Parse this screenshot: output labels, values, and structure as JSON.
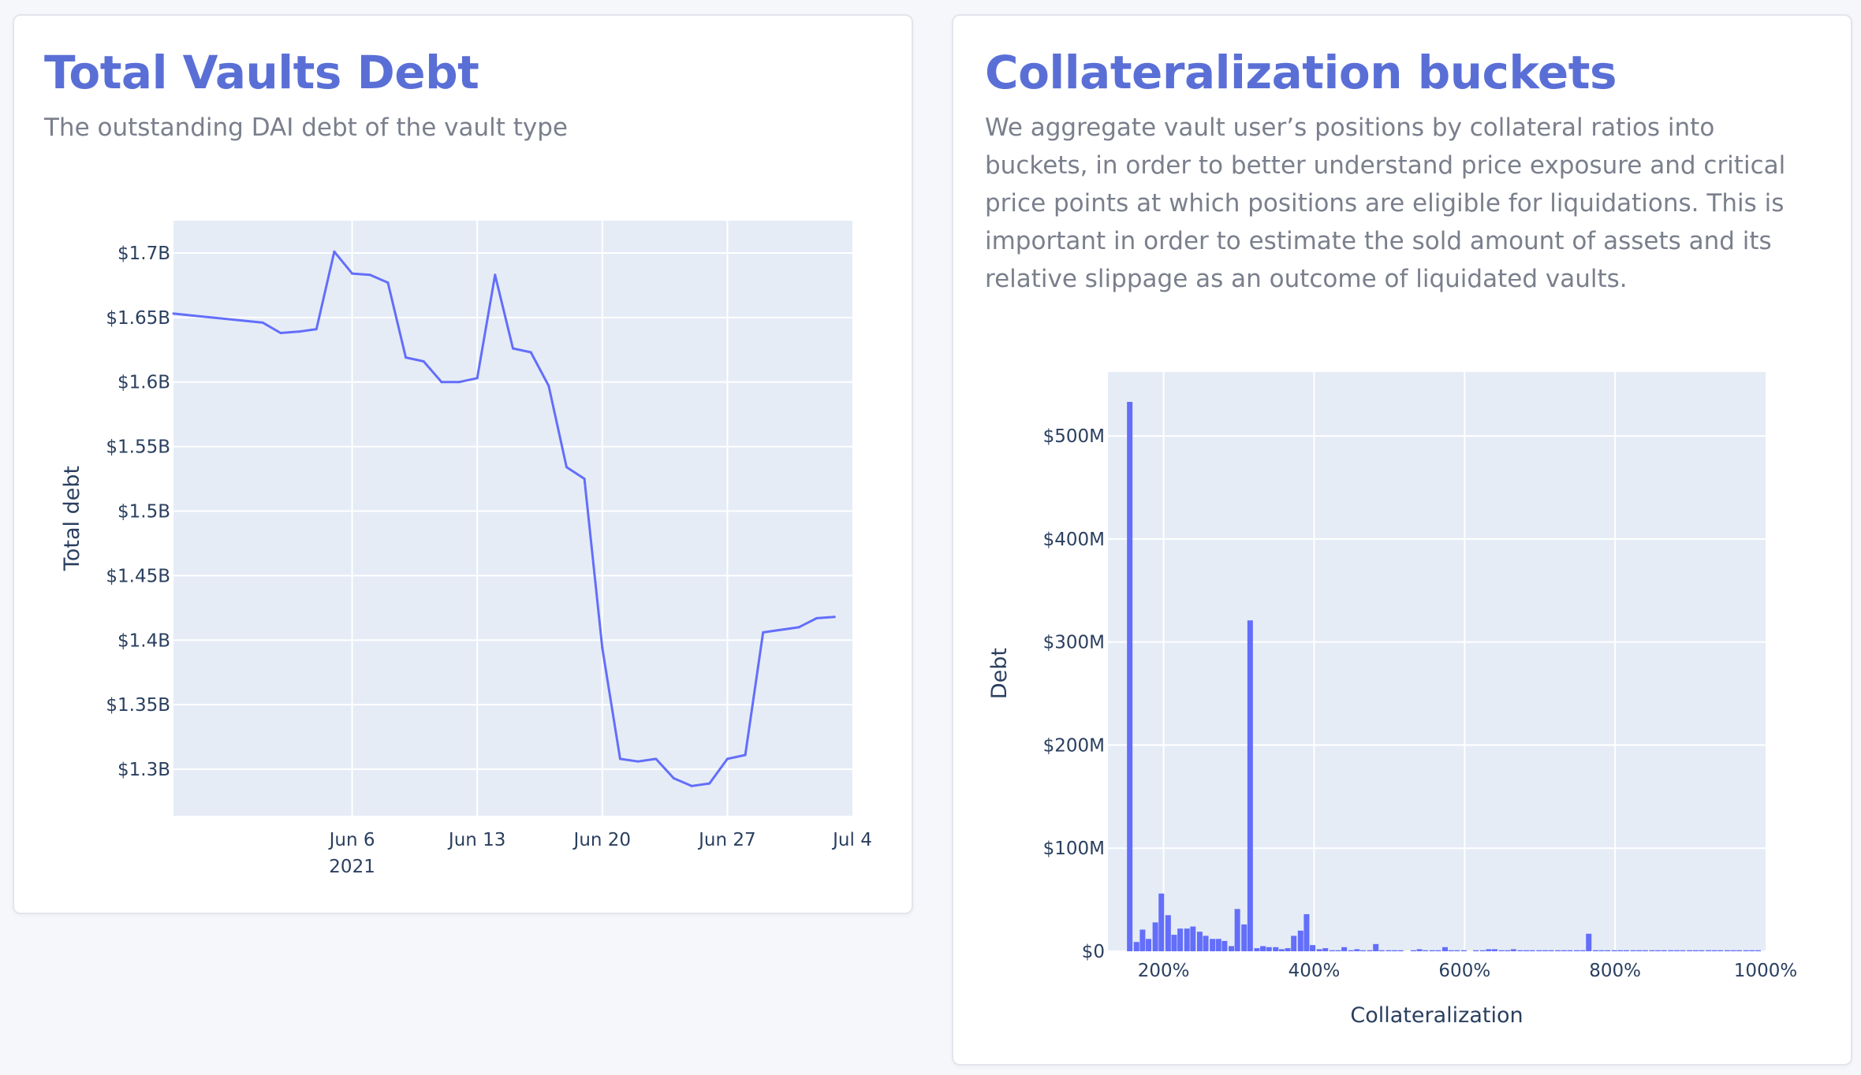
{
  "cards": [
    {
      "title": "Total Vaults Debt",
      "description": "The outstanding DAI debt of the vault type"
    },
    {
      "title": "Collateralization buckets",
      "description": "We aggregate vault user’s positions by collateral ratios into buckets, in order to better understand price exposure and critical price points at which positions are eligible for liquidations. This is important in order to estimate the sold amount of assets and its relative slippage as an outcome of liquidated vaults."
    }
  ],
  "colors": {
    "line": "#636efa",
    "bar": "#636efa",
    "plot_bg": "#e5ecf6",
    "title": "#5a6fd6"
  },
  "chart_data": [
    {
      "type": "line",
      "title": "",
      "xlabel": "",
      "ylabel": "Total debt",
      "x_start": "2021-05-27",
      "x_end": "2021-07-04",
      "ylim": [
        1.264,
        1.725
      ],
      "y_ticks": [
        {
          "v": 1.3,
          "label": "$1.3B"
        },
        {
          "v": 1.35,
          "label": "$1.35B"
        },
        {
          "v": 1.4,
          "label": "$1.4B"
        },
        {
          "v": 1.45,
          "label": "$1.45B"
        },
        {
          "v": 1.5,
          "label": "$1.5B"
        },
        {
          "v": 1.55,
          "label": "$1.55B"
        },
        {
          "v": 1.6,
          "label": "$1.6B"
        },
        {
          "v": 1.65,
          "label": "$1.65B"
        },
        {
          "v": 1.7,
          "label": "$1.7B"
        }
      ],
      "x_ticks": [
        {
          "date": "2021-06-06",
          "label": "Jun 6",
          "sub": "2021"
        },
        {
          "date": "2021-06-13",
          "label": "Jun 13",
          "sub": ""
        },
        {
          "date": "2021-06-20",
          "label": "Jun 20",
          "sub": ""
        },
        {
          "date": "2021-06-27",
          "label": "Jun 27",
          "sub": ""
        },
        {
          "date": "2021-07-04",
          "label": "Jul 4",
          "sub": ""
        }
      ],
      "series": [
        {
          "points": [
            [
              "2021-05-27",
              1.653
            ],
            [
              "2021-06-01",
              1.646
            ],
            [
              "2021-06-02",
              1.638
            ],
            [
              "2021-06-03",
              1.639
            ],
            [
              "2021-06-04",
              1.641
            ],
            [
              "2021-06-05",
              1.701
            ],
            [
              "2021-06-06",
              1.684
            ],
            [
              "2021-06-07",
              1.683
            ],
            [
              "2021-06-08",
              1.677
            ],
            [
              "2021-06-09",
              1.619
            ],
            [
              "2021-06-10",
              1.616
            ],
            [
              "2021-06-11",
              1.6
            ],
            [
              "2021-06-12",
              1.6
            ],
            [
              "2021-06-13",
              1.603
            ],
            [
              "2021-06-14",
              1.683
            ],
            [
              "2021-06-15",
              1.626
            ],
            [
              "2021-06-16",
              1.623
            ],
            [
              "2021-06-17",
              1.597
            ],
            [
              "2021-06-18",
              1.534
            ],
            [
              "2021-06-19",
              1.525
            ],
            [
              "2021-06-20",
              1.394
            ],
            [
              "2021-06-21",
              1.308
            ],
            [
              "2021-06-22",
              1.306
            ],
            [
              "2021-06-23",
              1.308
            ],
            [
              "2021-06-24",
              1.293
            ],
            [
              "2021-06-25",
              1.287
            ],
            [
              "2021-06-26",
              1.289
            ],
            [
              "2021-06-27",
              1.308
            ],
            [
              "2021-06-28",
              1.311
            ],
            [
              "2021-06-29",
              1.406
            ],
            [
              "2021-07-01",
              1.41
            ],
            [
              "2021-07-02",
              1.417
            ],
            [
              "2021-07-03",
              1.418
            ]
          ]
        }
      ]
    },
    {
      "type": "bar",
      "title": "",
      "xlabel": "Collateralization",
      "ylabel": "Debt",
      "xlim": [
        126,
        1000
      ],
      "ylim": [
        0,
        562
      ],
      "bar_width": 7,
      "y_ticks": [
        {
          "v": 0,
          "label": "$0"
        },
        {
          "v": 100,
          "label": "$100M"
        },
        {
          "v": 200,
          "label": "$200M"
        },
        {
          "v": 300,
          "label": "$300M"
        },
        {
          "v": 400,
          "label": "$400M"
        },
        {
          "v": 500,
          "label": "$500M"
        }
      ],
      "x_ticks": [
        {
          "v": 200,
          "label": "200%"
        },
        {
          "v": 400,
          "label": "400%"
        },
        {
          "v": 600,
          "label": "600%"
        },
        {
          "v": 800,
          "label": "800%"
        },
        {
          "v": 1000,
          "label": "1000%"
        }
      ],
      "x": [
        155,
        164,
        172,
        180,
        189,
        197,
        206,
        214,
        222,
        231,
        239,
        248,
        256,
        265,
        273,
        281,
        290,
        298,
        307,
        315,
        324,
        332,
        340,
        349,
        357,
        365,
        373,
        382,
        390,
        398,
        407,
        415,
        424,
        432,
        440,
        449,
        457,
        465,
        474,
        482,
        490,
        499,
        507,
        515,
        532,
        540,
        548,
        557,
        565,
        574,
        582,
        590,
        599,
        615,
        624,
        632,
        640,
        649,
        657,
        665,
        674,
        682,
        690,
        699,
        707,
        715,
        724,
        732,
        740,
        749,
        757,
        765,
        774,
        782,
        790,
        799,
        807,
        815,
        824,
        832,
        840,
        849,
        857,
        865,
        874,
        882,
        890,
        899,
        907,
        915,
        924,
        932,
        940,
        949,
        957,
        965,
        974,
        982,
        990
      ],
      "values": [
        533,
        9,
        21,
        12,
        28,
        56,
        35,
        16,
        22,
        22,
        24,
        19,
        15,
        12,
        12,
        10,
        5,
        41,
        26,
        321,
        3,
        5,
        4,
        4,
        2,
        3,
        15,
        20,
        36,
        6,
        2,
        3,
        1,
        1,
        4,
        1,
        2,
        1,
        1,
        7,
        1,
        1,
        1,
        1,
        1,
        2,
        1,
        1,
        1,
        4,
        1,
        1,
        1,
        1,
        1,
        2,
        2,
        1,
        1,
        2,
        1,
        1,
        1,
        1,
        1,
        1,
        1,
        1,
        1,
        1,
        1,
        17,
        1,
        1,
        1,
        1,
        1,
        1,
        1,
        1,
        1,
        1,
        1,
        1,
        1,
        1,
        1,
        1,
        1,
        1,
        1,
        1,
        1,
        1,
        1,
        1,
        1,
        1,
        1
      ]
    }
  ]
}
